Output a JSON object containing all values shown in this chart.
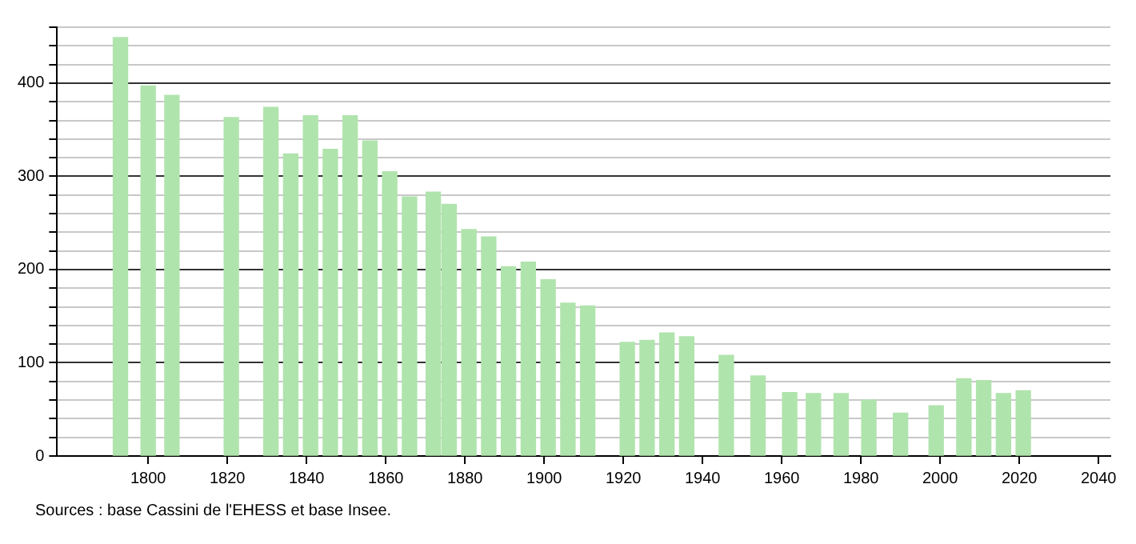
{
  "chart_data": {
    "type": "bar",
    "x": [
      1793,
      1800,
      1806,
      1821,
      1831,
      1836,
      1841,
      1846,
      1851,
      1856,
      1861,
      1866,
      1872,
      1876,
      1881,
      1886,
      1891,
      1896,
      1901,
      1906,
      1911,
      1921,
      1926,
      1931,
      1936,
      1946,
      1954,
      1962,
      1968,
      1975,
      1982,
      1990,
      1999,
      2006,
      2011,
      2016,
      2021
    ],
    "values": [
      449,
      397,
      387,
      363,
      374,
      324,
      365,
      329,
      365,
      338,
      305,
      278,
      283,
      270,
      243,
      235,
      203,
      208,
      189,
      164,
      161,
      122,
      124,
      132,
      128,
      108,
      86,
      68,
      67,
      67,
      60,
      46,
      54,
      83,
      81,
      67,
      70
    ],
    "color": "#b0e4ad",
    "xlim": [
      1777,
      2043
    ],
    "xticks": [
      1800,
      1820,
      1840,
      1860,
      1880,
      1900,
      1920,
      1940,
      1960,
      1980,
      2000,
      2020,
      2040
    ],
    "ylim": [
      0,
      460
    ],
    "yticks": [
      0,
      {
        "value": 20,
        "label": null
      },
      {
        "value": 40,
        "label": null
      },
      {
        "value": 60,
        "label": null
      },
      {
        "value": 80,
        "label": null
      },
      100,
      {
        "value": 120,
        "label": null
      },
      {
        "value": 140,
        "label": null
      },
      {
        "value": 160,
        "label": null
      },
      {
        "value": 180,
        "label": null
      },
      200,
      {
        "value": 220,
        "label": null
      },
      {
        "value": 240,
        "label": null
      },
      {
        "value": 260,
        "label": null
      },
      {
        "value": 280,
        "label": null
      },
      300,
      {
        "value": 320,
        "label": null
      },
      {
        "value": 340,
        "label": null
      },
      {
        "value": 360,
        "label": null
      },
      {
        "value": 380,
        "label": null
      },
      400,
      {
        "value": 420,
        "label": null
      },
      {
        "value": 440,
        "label": null
      },
      {
        "value": 460,
        "label": null
      }
    ],
    "grid": "y",
    "annotations": [
      "Sources : base Cassini de l'EHESS et base Insee."
    ]
  }
}
